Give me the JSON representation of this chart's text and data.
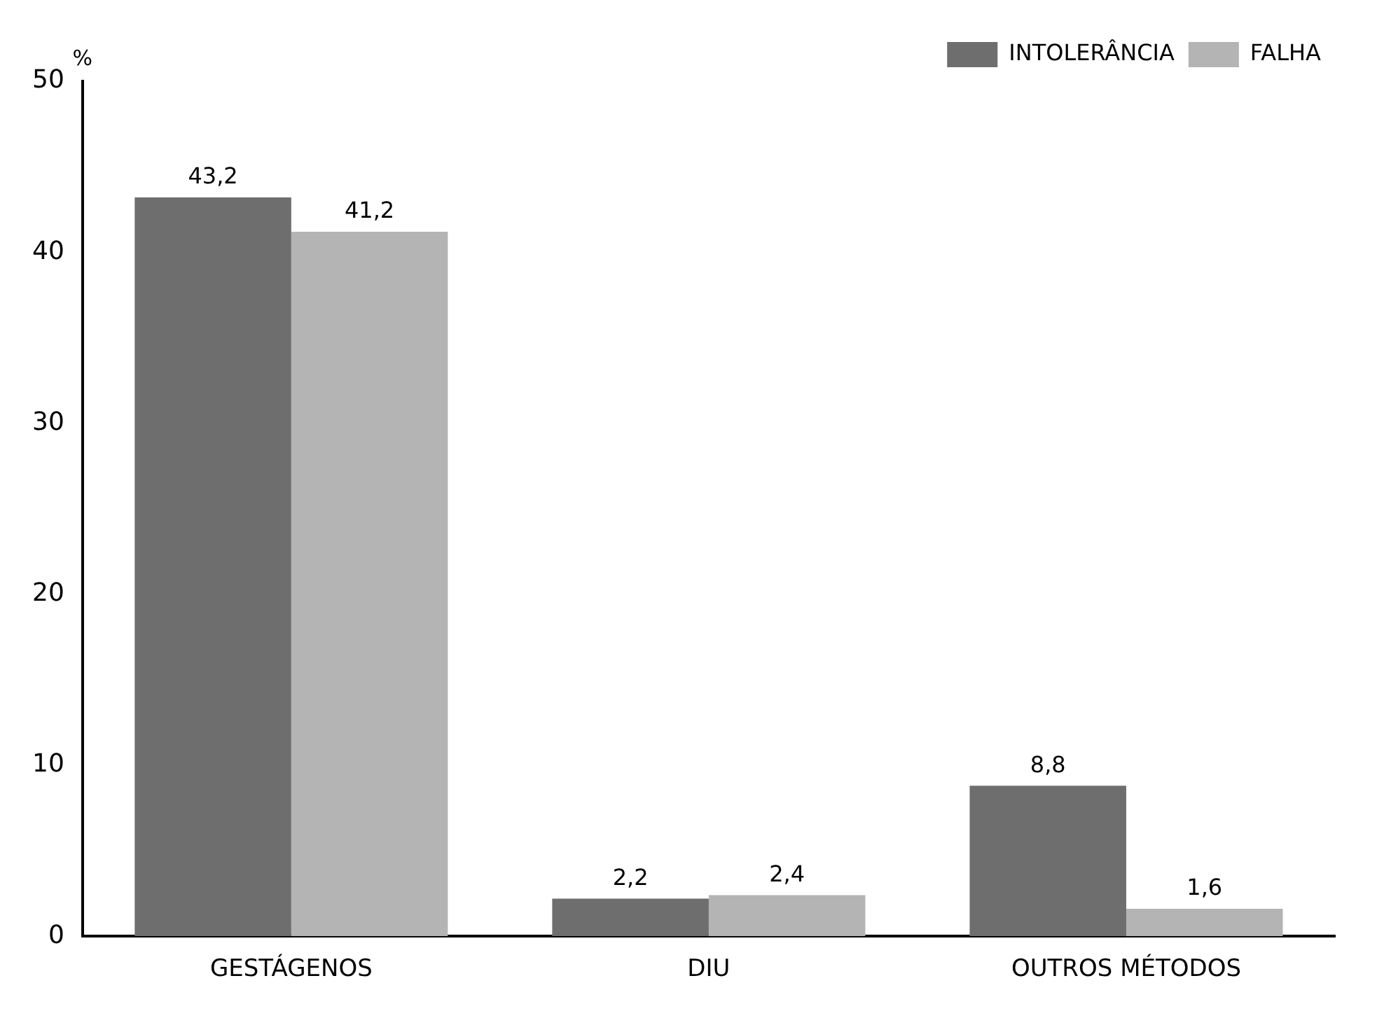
{
  "chart_data": {
    "type": "bar",
    "ylabel": "%",
    "categories": [
      "GESTÁGENOS",
      "DIU",
      "OUTROS MÉTODOS"
    ],
    "series": [
      {
        "name": "INTOLERÂNCIA",
        "color": "#6e6e6e",
        "values": [
          43.2,
          2.2,
          8.8
        ],
        "value_labels": [
          "43,2",
          "2,2",
          "8,8"
        ]
      },
      {
        "name": "FALHA",
        "color": "#b4b4b4",
        "values": [
          41.2,
          2.4,
          1.6
        ],
        "value_labels": [
          "41,2",
          "2,4",
          "1,6"
        ]
      }
    ],
    "ylim": [
      0,
      50
    ],
    "yticks": [
      0,
      10,
      20,
      30,
      40,
      50
    ],
    "grid": false,
    "legend": "top right"
  }
}
